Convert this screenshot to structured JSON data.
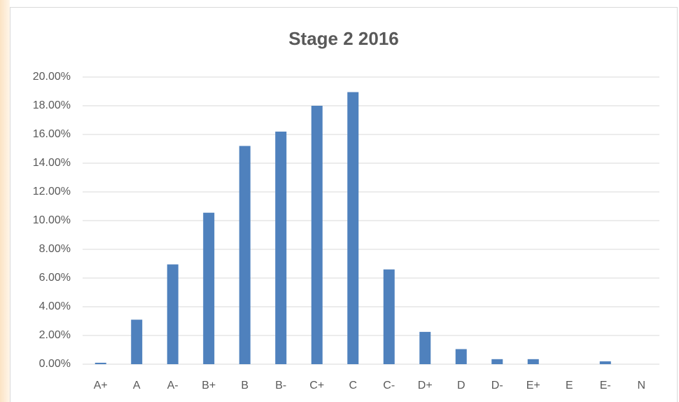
{
  "chart_data": {
    "type": "bar",
    "title": "Stage 2 2016",
    "categories": [
      "A+",
      "A",
      "A-",
      "B+",
      "B",
      "B-",
      "C+",
      "C",
      "C-",
      "D+",
      "D",
      "D-",
      "E+",
      "E",
      "E-",
      "N"
    ],
    "values": [
      0.1,
      3.1,
      6.95,
      10.55,
      15.2,
      16.2,
      18.0,
      18.95,
      6.6,
      2.25,
      1.05,
      0.35,
      0.35,
      0,
      0.2,
      0
    ],
    "color": "#4f81bd",
    "ylim": [
      0,
      20
    ],
    "yticks": [
      {
        "value": 0,
        "label": "0.00%"
      },
      {
        "value": 2,
        "label": "2.00%"
      },
      {
        "value": 4,
        "label": "4.00%"
      },
      {
        "value": 6,
        "label": "6.00%"
      },
      {
        "value": 8,
        "label": "8.00%"
      },
      {
        "value": 10,
        "label": "10.00%"
      },
      {
        "value": 12,
        "label": "12.00%"
      },
      {
        "value": 14,
        "label": "14.00%"
      },
      {
        "value": 16,
        "label": "16.00%"
      },
      {
        "value": 18,
        "label": "18.00%"
      },
      {
        "value": 20,
        "label": "20.00%"
      }
    ],
    "grid": true
  }
}
